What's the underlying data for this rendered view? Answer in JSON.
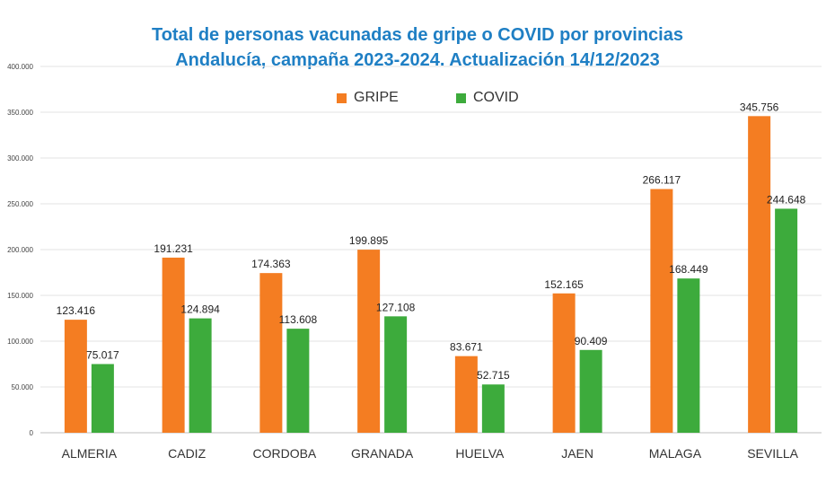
{
  "chart_data": {
    "type": "bar",
    "title": "Total de personas vacunadas de gripe o COVID por provincias",
    "subtitle": "Andalucía, campaña 2023-2024. Actualización 14/12/2023",
    "xlabel": "",
    "ylabel": "",
    "ylim": [
      0,
      400000
    ],
    "yticks": [
      0,
      50000,
      100000,
      150000,
      200000,
      250000,
      300000,
      350000,
      400000
    ],
    "ytick_labels": [
      "0",
      "50.000",
      "100.000",
      "150.000",
      "200.000",
      "250.000",
      "300.000",
      "350.000",
      "400.000"
    ],
    "grid": true,
    "legend_position": "top-center",
    "categories": [
      "ALMERIA",
      "CADIZ",
      "CORDOBA",
      "GRANADA",
      "HUELVA",
      "JAEN",
      "MALAGA",
      "SEVILLA"
    ],
    "series": [
      {
        "name": "GRIPE",
        "color": "#f47d22",
        "values": [
          123416,
          191231,
          174363,
          199895,
          83671,
          152165,
          266117,
          345756
        ],
        "labels": [
          "123.416",
          "191.231",
          "174.363",
          "199.895",
          "83.671",
          "152.165",
          "266.117",
          "345.756"
        ]
      },
      {
        "name": "COVID",
        "color": "#3dab3c",
        "values": [
          75017,
          124894,
          113608,
          127108,
          52715,
          90409,
          168449,
          244648
        ],
        "labels": [
          "75.017",
          "124.894",
          "113.608",
          "127.108",
          "52.715",
          "90.409",
          "168.449",
          "244.648"
        ]
      }
    ]
  }
}
